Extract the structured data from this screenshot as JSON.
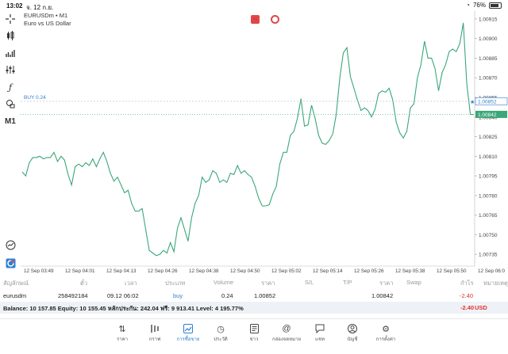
{
  "status": {
    "time": "13:02",
    "date": "จ. 12 ก.ย.",
    "battery": "76%"
  },
  "toolbar": {
    "m1": "M1"
  },
  "chart": {
    "symbol_line": "EURUSDm • M1",
    "description": "Euro vs US Dollar",
    "buy_label": "BUY 0.24",
    "current_price_label": "1.00842",
    "buy_price_label": "1.00852",
    "colors": {
      "line": "#3aa77a",
      "buy": "#2f7fd0",
      "current": "#3aa77a"
    }
  },
  "chart_data": {
    "type": "line",
    "title": "",
    "xlabel": "",
    "ylabel": "",
    "ylim": [
      1.00726,
      1.00921
    ],
    "y_ticks": [
      "1.00915",
      "1.00900",
      "1.00885",
      "1.00870",
      "1.00855",
      "1.00840",
      "1.00825",
      "1.00810",
      "1.00795",
      "1.00780",
      "1.00765",
      "1.00750",
      "1.00735"
    ],
    "x_ticks": [
      "12 Sep 03:49",
      "12 Sep 04:01",
      "12 Sep 04:13",
      "12 Sep 04:26",
      "12 Sep 04:38",
      "12 Sep 04:50",
      "12 Sep 05:02",
      "12 Sep 05:14",
      "12 Sep 05:26",
      "12 Sep 05:38",
      "12 Sep 05:50",
      "12 Sep 06:0"
    ],
    "grid": false,
    "legend": "none",
    "series": [
      {
        "values": [
          1.00798,
          1.00795,
          1.00805,
          1.00809,
          1.00809,
          1.0081,
          1.00808,
          1.00809,
          1.00809,
          1.00813,
          1.00806,
          1.0081,
          1.00807,
          1.00796,
          1.00788,
          1.00802,
          1.00804,
          1.00802,
          1.00805,
          1.00803,
          1.00808,
          1.00802,
          1.00808,
          1.00813,
          1.00806,
          1.00797,
          1.00791,
          1.00794,
          1.00788,
          1.00782,
          1.00784,
          1.00774,
          1.00768,
          1.00768,
          1.0077,
          1.00754,
          1.00738,
          1.00736,
          1.00734,
          1.00735,
          1.00738,
          1.00736,
          1.00744,
          1.00737,
          1.00755,
          1.00763,
          1.00754,
          1.00745,
          1.00763,
          1.00774,
          1.0078,
          1.00794,
          1.0079,
          1.00792,
          1.00799,
          1.00797,
          1.0079,
          1.00792,
          1.0079,
          1.00797,
          1.00796,
          1.00803,
          1.00797,
          1.00799,
          1.00796,
          1.00794,
          1.00787,
          1.00778,
          1.00772,
          1.00772,
          1.00773,
          1.00781,
          1.00787,
          1.00804,
          1.00813,
          1.00813,
          1.00826,
          1.00829,
          1.00839,
          1.00854,
          1.00833,
          1.00834,
          1.00849,
          1.00839,
          1.00826,
          1.0082,
          1.00819,
          1.00822,
          1.00827,
          1.00842,
          1.0087,
          1.00889,
          1.00893,
          1.00871,
          1.00862,
          1.00853,
          1.00845,
          1.00847,
          1.00845,
          1.0084,
          1.00846,
          1.00858,
          1.0086,
          1.00859,
          1.00862,
          1.00853,
          1.00836,
          1.00828,
          1.00824,
          1.00829,
          1.00847,
          1.0085,
          1.0087,
          1.0088,
          1.00898,
          1.00885,
          1.00885,
          1.00877,
          1.0086,
          1.00874,
          1.0088,
          1.0089,
          1.00892,
          1.0089,
          1.00896,
          1.00912,
          1.00865,
          1.00842,
          1.00842
        ]
      }
    ]
  },
  "positions": {
    "headers": [
      "สัญลักษณ์",
      "ตั๋ว",
      "เวลา",
      "ประเภท",
      "Volume",
      "ราคา",
      "S/L",
      "T/P",
      "ราคา",
      "Swap",
      "กำไร",
      "หมายเหตุ"
    ],
    "row": {
      "symbol": "eurusdm",
      "ticket": "258492184",
      "time": "09.12 06:02",
      "type": "buy",
      "volume": "0.24",
      "open_price": "1.00852",
      "current_price": "1.00842",
      "profit": "-2.40"
    },
    "balance_line": "Balance: 10 157.85 Equity: 10 155.45 หลักประกัน: 242.04 ฟรี: 9 913.41 Level: 4 195.77%",
    "total_profit": "-2.40",
    "currency": "USD"
  },
  "nav": [
    {
      "label": "ราคา",
      "icon": "quotes-icon",
      "active": false
    },
    {
      "label": "กราฟ",
      "icon": "chart-icon",
      "active": false
    },
    {
      "label": "การซื้อขาย",
      "icon": "trade-icon",
      "active": true
    },
    {
      "label": "ประวัติ",
      "icon": "history-icon",
      "active": false
    },
    {
      "label": "ข่าว",
      "icon": "news-icon",
      "active": false
    },
    {
      "label": "กล่องจดหมาย",
      "icon": "mailbox-icon",
      "active": false
    },
    {
      "label": "แชท",
      "icon": "chat-icon",
      "active": false
    },
    {
      "label": "บัญชี",
      "icon": "account-icon",
      "active": false
    },
    {
      "label": "การตั้งค่า",
      "icon": "settings-icon",
      "active": false
    }
  ]
}
